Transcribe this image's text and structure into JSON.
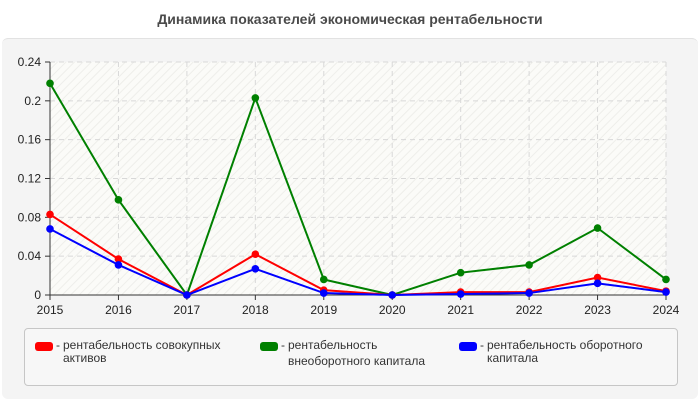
{
  "chart_data": {
    "type": "line",
    "title": "Динамика показателей экономическая рентабельности",
    "xlabel": "",
    "ylabel": "",
    "x": [
      "2015",
      "2016",
      "2017",
      "2018",
      "2019",
      "2020",
      "2021",
      "2022",
      "2023",
      "2024"
    ],
    "ylim": [
      0,
      0.24
    ],
    "yticks": [
      "0",
      "0.04",
      "0.08",
      "0.12",
      "0.16",
      "0.2",
      "0.24"
    ],
    "grid": true,
    "legend_position": "bottom",
    "series": [
      {
        "name": "рентабельность совокупных активов",
        "color": "#ff0000",
        "values": [
          0.083,
          0.037,
          0.0,
          0.042,
          0.005,
          0.0,
          0.003,
          0.003,
          0.018,
          0.004
        ]
      },
      {
        "name": "рентабельность внеоборотного капитала",
        "color": "#008000",
        "values": [
          0.218,
          0.098,
          0.0,
          0.203,
          0.016,
          0.0,
          0.023,
          0.031,
          0.069,
          0.016
        ]
      },
      {
        "name": "рентабельность оборотного капитала",
        "color": "#0000ff",
        "values": [
          0.068,
          0.031,
          0.0,
          0.027,
          0.002,
          0.0,
          0.001,
          0.002,
          0.012,
          0.003
        ]
      }
    ]
  },
  "legend": {
    "items": [
      {
        "dash": "-",
        "line1": "рентабельность совокупных",
        "line2": "активов",
        "color": "#ff0000"
      },
      {
        "dash": "-",
        "line1": "рентабельность",
        "line2": "внеоборотного капитала",
        "color": "#008000"
      },
      {
        "dash": "-",
        "line1": "рентабельность оборотного",
        "line2": "капитала",
        "color": "#0000ff"
      }
    ]
  }
}
